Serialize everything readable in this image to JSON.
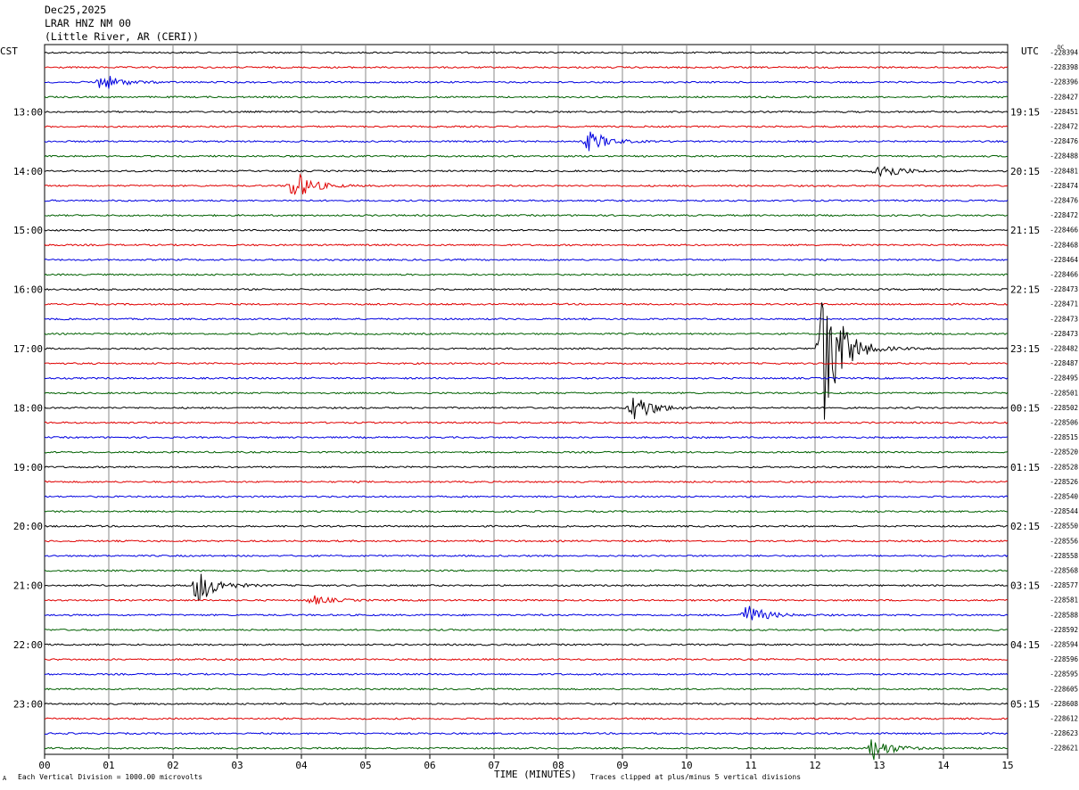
{
  "header": {
    "date": "Dec25,2025",
    "station": "LRAR HNZ NM 00",
    "location": "(Little River, AR (CERI))"
  },
  "chart_data": {
    "type": "line",
    "title": "",
    "xlabel": "TIME (MINUTES)",
    "left_label": "CST",
    "right_label": "UTC",
    "corner_label": "DC",
    "xlim": [
      0,
      15
    ],
    "x_ticks": [
      "00",
      "01",
      "02",
      "03",
      "04",
      "05",
      "06",
      "07",
      "08",
      "09",
      "10",
      "11",
      "12",
      "13",
      "14",
      "15"
    ],
    "grid": true,
    "trace_colors": [
      "#000000",
      "#e00000",
      "#0000e0",
      "#006000"
    ],
    "left_hour_labels": [
      "13:00",
      "14:00",
      "15:00",
      "16:00",
      "17:00",
      "18:00",
      "19:00",
      "20:00",
      "21:00",
      "22:00",
      "23:00"
    ],
    "right_hour_labels": [
      "19:15",
      "20:15",
      "21:15",
      "22:15",
      "23:15",
      "00:15",
      "01:15",
      "02:15",
      "03:15",
      "04:15",
      "05:15"
    ],
    "trace_offsets": [
      "-228394",
      "-228398",
      "-228396",
      "-228427",
      "-228451",
      "-228472",
      "-228476",
      "-228488",
      "-228481",
      "-228474",
      "-228476",
      "-228472",
      "-228466",
      "-228468",
      "-228464",
      "-228466",
      "-228473",
      "-228471",
      "-228473",
      "-228473",
      "-228482",
      "-228487",
      "-228495",
      "-228501",
      "-228502",
      "-228506",
      "-228515",
      "-228520",
      "-228528",
      "-228526",
      "-228540",
      "-228544",
      "-228550",
      "-228556",
      "-228558",
      "-228568",
      "-228577",
      "-228581",
      "-228588",
      "-228592",
      "-228594",
      "-228596",
      "-228595",
      "-228605",
      "-228608",
      "-228612",
      "-228623",
      "-228621"
    ],
    "events": [
      {
        "trace": 2,
        "minute": 0.9,
        "amplitude": 0.6
      },
      {
        "trace": 6,
        "minute": 8.5,
        "amplitude": 0.7
      },
      {
        "trace": 8,
        "minute": 13.0,
        "amplitude": 0.7
      },
      {
        "trace": 9,
        "minute": 3.9,
        "amplitude": 1.0
      },
      {
        "trace": 20,
        "minute": 12.15,
        "amplitude": 5.0
      },
      {
        "trace": 24,
        "minute": 9.2,
        "amplitude": 1.0
      },
      {
        "trace": 36,
        "minute": 2.4,
        "amplitude": 1.2
      },
      {
        "trace": 37,
        "minute": 4.2,
        "amplitude": 0.3
      },
      {
        "trace": 38,
        "minute": 10.95,
        "amplitude": 0.7
      },
      {
        "trace": 47,
        "minute": 12.9,
        "amplitude": 0.8
      }
    ],
    "scale_note": "Each Vertical Division = 1000.00 microvolts",
    "clip_note": "Traces clipped at plus/minus 5 vertical divisions"
  },
  "footer": {
    "mark": "A"
  }
}
